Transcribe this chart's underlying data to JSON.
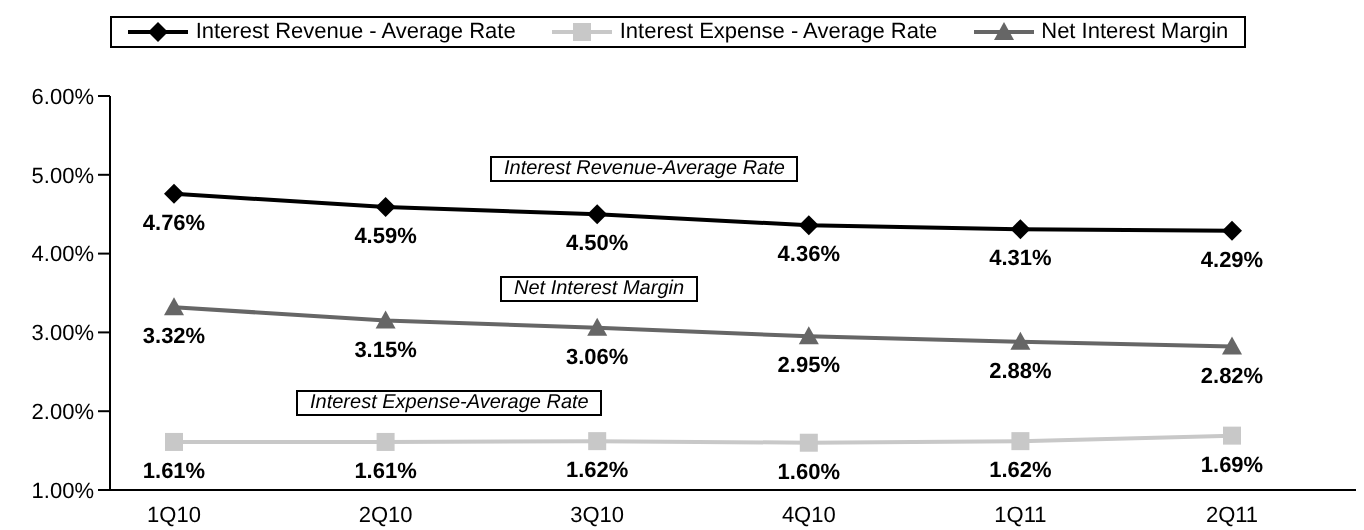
{
  "chart_data": {
    "type": "line",
    "categories": [
      "1Q10",
      "2Q10",
      "3Q10",
      "4Q10",
      "1Q11",
      "2Q11"
    ],
    "series": [
      {
        "name": "Interest Revenue - Average Rate",
        "color": "#000000",
        "marker": "diamond",
        "values": [
          4.76,
          4.59,
          4.5,
          4.36,
          4.31,
          4.29
        ],
        "value_labels": [
          "4.76%",
          "4.59%",
          "4.50%",
          "4.36%",
          "4.31%",
          "4.29%"
        ]
      },
      {
        "name": "Interest Expense - Average Rate",
        "color": "#c8c8c8",
        "marker": "square",
        "values": [
          1.61,
          1.61,
          1.62,
          1.6,
          1.62,
          1.69
        ],
        "value_labels": [
          "1.61%",
          "1.61%",
          "1.62%",
          "1.60%",
          "1.62%",
          "1.69%"
        ]
      },
      {
        "name": "Net Interest Margin",
        "color": "#666666",
        "marker": "triangle",
        "values": [
          3.32,
          3.15,
          3.06,
          2.95,
          2.88,
          2.82
        ],
        "value_labels": [
          "3.32%",
          "3.15%",
          "3.06%",
          "2.95%",
          "2.88%",
          "2.82%"
        ]
      }
    ],
    "ylim": [
      1,
      6
    ],
    "yticks": [
      {
        "value": 1,
        "label": "1.00%"
      },
      {
        "value": 2,
        "label": "2.00%"
      },
      {
        "value": 3,
        "label": "3.00%"
      },
      {
        "value": 4,
        "label": "4.00%"
      },
      {
        "value": 5,
        "label": "5.00%"
      },
      {
        "value": 6,
        "label": "6.00%"
      }
    ],
    "annotations": [
      "Interest Revenue-Average Rate",
      "Net Interest Margin",
      "Interest Expense-Average Rate"
    ],
    "legend": "top",
    "grid": false
  }
}
